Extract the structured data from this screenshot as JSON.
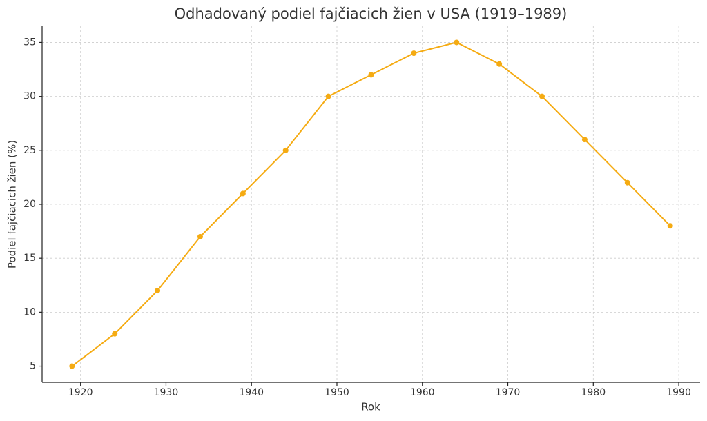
{
  "chart_data": {
    "type": "line",
    "title": "Odhadovaný podiel fajčiacich žien v USA (1919–1989)",
    "x_label": "Rok",
    "y_label": "Podiel fajčiacich žien (%)",
    "x": [
      1919,
      1924,
      1929,
      1934,
      1939,
      1944,
      1949,
      1954,
      1959,
      1964,
      1969,
      1974,
      1979,
      1984,
      1989
    ],
    "series": [
      {
        "name": "Podiel fajčiacich žien",
        "color": "#f5ab12",
        "values": [
          5,
          8,
          12,
          17,
          21,
          25,
          30,
          32,
          34,
          35,
          33,
          30,
          26,
          22,
          18
        ]
      }
    ],
    "xlim": [
      1915.5,
      1992.5
    ],
    "xticks": [
      1920,
      1930,
      1940,
      1950,
      1960,
      1970,
      1980,
      1990
    ],
    "ylim": [
      3.5,
      36.5
    ],
    "yticks": [
      5,
      10,
      15,
      20,
      25,
      30,
      35
    ],
    "grid": true
  }
}
